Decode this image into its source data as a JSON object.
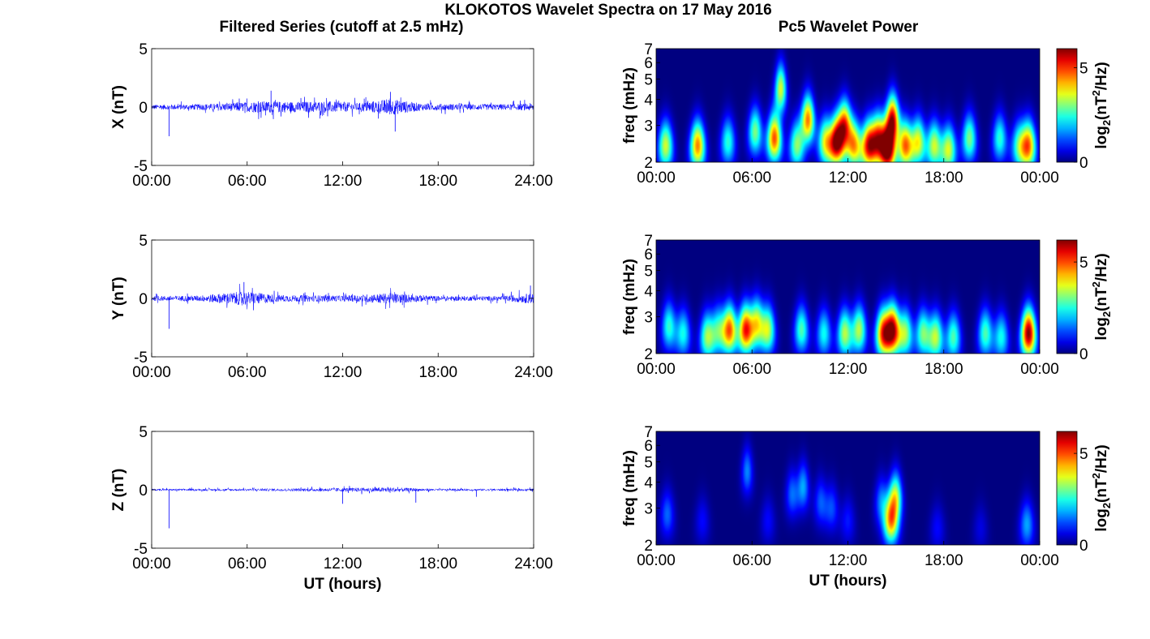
{
  "figure": {
    "title": "KLOKOTOS Wavelet Spectra on 17 May 2016",
    "left_title": "Filtered Series (cutoff at 2.5 mHz)",
    "right_title": "Pc5 Wavelet Power"
  },
  "chart_data": [
    {
      "type": "line",
      "component": "X",
      "ylabel": "X (nT)",
      "xlabel": "",
      "x_ticks": [
        "00:00",
        "06:00",
        "12:00",
        "18:00",
        "24:00"
      ],
      "xlim_hours": [
        0,
        24
      ],
      "ylim": [
        -5,
        5
      ],
      "y_ticks": [
        "-5",
        "0",
        "5"
      ],
      "line_color": "#0000ff",
      "noise_profile": [
        {
          "t": 0,
          "amp": 0.2
        },
        {
          "t": 3,
          "amp": 0.25
        },
        {
          "t": 5,
          "amp": 0.35
        },
        {
          "t": 7,
          "amp": 0.5
        },
        {
          "t": 9,
          "amp": 0.45
        },
        {
          "t": 11,
          "amp": 0.5
        },
        {
          "t": 13,
          "amp": 0.35
        },
        {
          "t": 15,
          "amp": 0.7
        },
        {
          "t": 17,
          "amp": 0.3
        },
        {
          "t": 20,
          "amp": 0.25
        },
        {
          "t": 23,
          "amp": 0.25
        },
        {
          "t": 24,
          "amp": 0.35
        }
      ],
      "spikes": [
        {
          "t": 1.1,
          "value": -2.5
        },
        {
          "t": 15.3,
          "value": -2.1
        },
        {
          "t": 15.0,
          "value": 1.3
        },
        {
          "t": 7.5,
          "value": 1.4
        }
      ]
    },
    {
      "type": "line",
      "component": "Y",
      "ylabel": "Y (nT)",
      "xlabel": "",
      "x_ticks": [
        "00:00",
        "06:00",
        "12:00",
        "18:00",
        "24:00"
      ],
      "xlim_hours": [
        0,
        24
      ],
      "ylim": [
        -5,
        5
      ],
      "y_ticks": [
        "-5",
        "0",
        "5"
      ],
      "line_color": "#0000ff",
      "noise_profile": [
        {
          "t": 0,
          "amp": 0.2
        },
        {
          "t": 3,
          "amp": 0.25
        },
        {
          "t": 5.8,
          "amp": 0.6
        },
        {
          "t": 8,
          "amp": 0.3
        },
        {
          "t": 12,
          "amp": 0.25
        },
        {
          "t": 15,
          "amp": 0.45
        },
        {
          "t": 18,
          "amp": 0.2
        },
        {
          "t": 22,
          "amp": 0.2
        },
        {
          "t": 24,
          "amp": 0.45
        }
      ],
      "spikes": [
        {
          "t": 1.1,
          "value": -2.6
        },
        {
          "t": 5.8,
          "value": 1.4
        },
        {
          "t": 23.8,
          "value": 1.1
        }
      ]
    },
    {
      "type": "line",
      "component": "Z",
      "ylabel": "Z (nT)",
      "xlabel": "UT (hours)",
      "x_ticks": [
        "00:00",
        "06:00",
        "12:00",
        "18:00",
        "24:00"
      ],
      "xlim_hours": [
        0,
        24
      ],
      "ylim": [
        -5,
        5
      ],
      "y_ticks": [
        "-5",
        "0",
        "5"
      ],
      "line_color": "#0000ff",
      "noise_profile": [
        {
          "t": 0,
          "amp": 0.08
        },
        {
          "t": 6,
          "amp": 0.1
        },
        {
          "t": 9,
          "amp": 0.12
        },
        {
          "t": 15,
          "amp": 0.2
        },
        {
          "t": 18,
          "amp": 0.08
        },
        {
          "t": 24,
          "amp": 0.1
        }
      ],
      "spikes": [
        {
          "t": 1.1,
          "value": -3.3
        },
        {
          "t": 12.0,
          "value": -1.2
        },
        {
          "t": 16.6,
          "value": -1.1
        },
        {
          "t": 20.4,
          "value": -0.6
        }
      ]
    },
    {
      "type": "heatmap",
      "component": "X",
      "ylabel": "freq (mHz)",
      "xlabel": "",
      "x_ticks": [
        "00:00",
        "06:00",
        "12:00",
        "18:00",
        "00:00"
      ],
      "xlim_hours": [
        0,
        24
      ],
      "ylim_mhz": [
        2,
        7
      ],
      "y_scale": "log",
      "y_ticks": [
        "2",
        "3",
        "4",
        "5",
        "6",
        "7"
      ],
      "colorbar_label": "log2(nT²/Hz)",
      "colorbar_ticks": [
        {
          "value": 0,
          "label": "0"
        },
        {
          "value": 5,
          "label": "5"
        }
      ],
      "colorbar_max": 6.0,
      "colormap": "jet",
      "peaks": [
        {
          "t": 0.6,
          "f": 2.4,
          "power": 3.5
        },
        {
          "t": 2.6,
          "f": 2.4,
          "power": 4.5
        },
        {
          "t": 4.5,
          "f": 2.5,
          "power": 2.5
        },
        {
          "t": 6.2,
          "f": 2.8,
          "power": 3.0
        },
        {
          "t": 7.4,
          "f": 2.6,
          "power": 4.8
        },
        {
          "t": 7.8,
          "f": 4.5,
          "power": 3.5
        },
        {
          "t": 8.8,
          "f": 2.4,
          "power": 3.0
        },
        {
          "t": 9.5,
          "f": 3.2,
          "power": 4.5
        },
        {
          "t": 10.6,
          "f": 2.5,
          "power": 3.5
        },
        {
          "t": 11.3,
          "f": 2.5,
          "power": 5.6
        },
        {
          "t": 11.8,
          "f": 3.0,
          "power": 4.6
        },
        {
          "t": 12.4,
          "f": 2.4,
          "power": 4.0
        },
        {
          "t": 13.3,
          "f": 2.4,
          "power": 5.0
        },
        {
          "t": 13.9,
          "f": 2.6,
          "power": 4.5
        },
        {
          "t": 14.5,
          "f": 2.3,
          "power": 6.0
        },
        {
          "t": 14.8,
          "f": 3.2,
          "power": 5.2
        },
        {
          "t": 15.6,
          "f": 2.4,
          "power": 4.5
        },
        {
          "t": 16.4,
          "f": 2.5,
          "power": 3.6
        },
        {
          "t": 17.4,
          "f": 2.4,
          "power": 3.4
        },
        {
          "t": 18.3,
          "f": 2.3,
          "power": 3.5
        },
        {
          "t": 19.6,
          "f": 2.6,
          "power": 3.0
        },
        {
          "t": 21.5,
          "f": 2.6,
          "power": 2.5
        },
        {
          "t": 22.7,
          "f": 2.4,
          "power": 2.6
        },
        {
          "t": 23.3,
          "f": 2.4,
          "power": 4.4
        }
      ]
    },
    {
      "type": "heatmap",
      "component": "Y",
      "ylabel": "freq (mHz)",
      "xlabel": "",
      "x_ticks": [
        "00:00",
        "06:00",
        "12:00",
        "18:00",
        "00:00"
      ],
      "xlim_hours": [
        0,
        24
      ],
      "ylim_mhz": [
        2,
        7
      ],
      "y_scale": "log",
      "y_ticks": [
        "2",
        "3",
        "4",
        "5",
        "6",
        "7"
      ],
      "colorbar_label": "log2(nT²/Hz)",
      "colorbar_ticks": [
        {
          "value": 0,
          "label": "0"
        },
        {
          "value": 5,
          "label": "5"
        }
      ],
      "colorbar_max": 6.2,
      "colormap": "jet",
      "peaks": [
        {
          "t": 0.8,
          "f": 2.7,
          "power": 2.6
        },
        {
          "t": 1.7,
          "f": 2.5,
          "power": 2.4
        },
        {
          "t": 3.2,
          "f": 2.4,
          "power": 3.2
        },
        {
          "t": 3.9,
          "f": 2.6,
          "power": 2.5
        },
        {
          "t": 4.6,
          "f": 2.6,
          "power": 4.8
        },
        {
          "t": 5.6,
          "f": 2.6,
          "power": 5.2
        },
        {
          "t": 6.3,
          "f": 2.8,
          "power": 3.6
        },
        {
          "t": 7.0,
          "f": 2.6,
          "power": 3.4
        },
        {
          "t": 9.1,
          "f": 2.6,
          "power": 2.8
        },
        {
          "t": 10.5,
          "f": 2.5,
          "power": 2.4
        },
        {
          "t": 11.8,
          "f": 2.5,
          "power": 3.4
        },
        {
          "t": 12.7,
          "f": 2.6,
          "power": 3.4
        },
        {
          "t": 14.2,
          "f": 2.5,
          "power": 4.8
        },
        {
          "t": 14.8,
          "f": 2.6,
          "power": 5.8
        },
        {
          "t": 15.6,
          "f": 2.5,
          "power": 3.2
        },
        {
          "t": 16.7,
          "f": 2.5,
          "power": 3.0
        },
        {
          "t": 17.5,
          "f": 2.4,
          "power": 3.4
        },
        {
          "t": 18.6,
          "f": 2.4,
          "power": 2.8
        },
        {
          "t": 20.6,
          "f": 2.5,
          "power": 2.8
        },
        {
          "t": 21.6,
          "f": 2.4,
          "power": 2.4
        },
        {
          "t": 23.3,
          "f": 2.5,
          "power": 6.2
        }
      ]
    },
    {
      "type": "heatmap",
      "component": "Z",
      "ylabel": "freq (mHz)",
      "xlabel": "UT (hours)",
      "x_ticks": [
        "00:00",
        "06:00",
        "12:00",
        "18:00",
        "00:00"
      ],
      "xlim_hours": [
        0,
        24
      ],
      "ylim_mhz": [
        2,
        7
      ],
      "y_scale": "log",
      "y_ticks": [
        "2",
        "3",
        "4",
        "5",
        "6",
        "7"
      ],
      "colorbar_label": "log2(nT²/Hz)",
      "colorbar_ticks": [
        {
          "value": 0,
          "label": "0"
        },
        {
          "value": 5,
          "label": "5"
        }
      ],
      "colorbar_max": 6.2,
      "colormap": "jet",
      "peaks": [
        {
          "t": 0.7,
          "f": 2.8,
          "power": 1.4
        },
        {
          "t": 2.9,
          "f": 2.6,
          "power": 0.8
        },
        {
          "t": 5.7,
          "f": 4.5,
          "power": 1.6
        },
        {
          "t": 7.0,
          "f": 2.6,
          "power": 0.8
        },
        {
          "t": 8.5,
          "f": 3.5,
          "power": 1.4
        },
        {
          "t": 9.2,
          "f": 3.8,
          "power": 1.8
        },
        {
          "t": 10.3,
          "f": 3.2,
          "power": 1.3
        },
        {
          "t": 11.0,
          "f": 3.0,
          "power": 1.2
        },
        {
          "t": 12.0,
          "f": 2.6,
          "power": 0.9
        },
        {
          "t": 14.1,
          "f": 3.2,
          "power": 1.6
        },
        {
          "t": 14.7,
          "f": 2.6,
          "power": 4.2
        },
        {
          "t": 15.0,
          "f": 3.4,
          "power": 3.2
        },
        {
          "t": 17.6,
          "f": 2.4,
          "power": 0.8
        },
        {
          "t": 20.3,
          "f": 2.4,
          "power": 0.6
        },
        {
          "t": 23.2,
          "f": 2.5,
          "power": 1.8
        }
      ]
    }
  ]
}
